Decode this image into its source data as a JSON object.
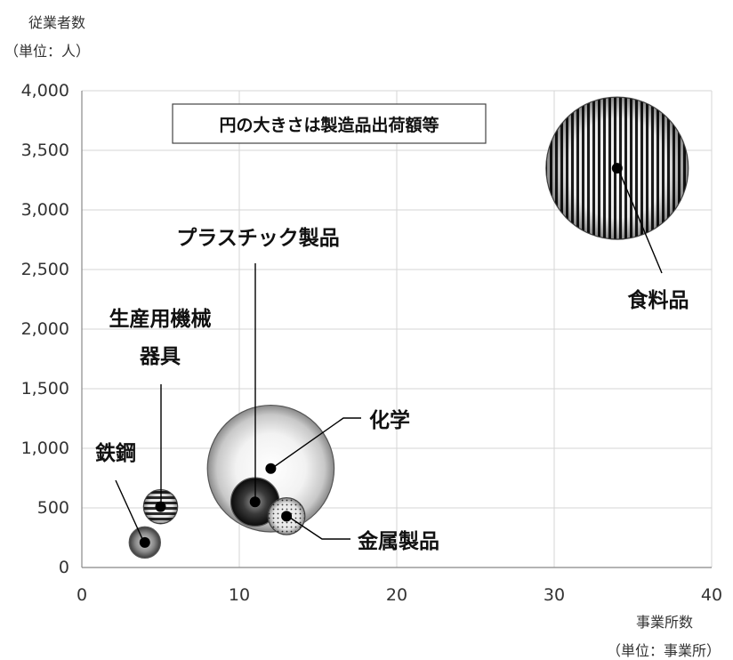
{
  "chart_data": {
    "type": "bubble",
    "ylabel_line1": "従業者数",
    "ylabel_line2": "（単位：人）",
    "xlabel_line1": "事業所数",
    "xlabel_line2": "（単位：事業所）",
    "legend_note": "円の大きさは製造品出荷額等",
    "xlim": [
      0,
      40
    ],
    "ylim": [
      0,
      4000
    ],
    "x_ticks": [
      0,
      10,
      20,
      30,
      40
    ],
    "x_tick_labels": [
      "0",
      "10",
      "20",
      "30",
      "40"
    ],
    "y_ticks": [
      0,
      500,
      1000,
      1500,
      2000,
      2500,
      3000,
      3500,
      4000
    ],
    "y_tick_labels": [
      "0",
      "500",
      "1,000",
      "1,500",
      "2,000",
      "2,500",
      "3,000",
      "3,500",
      "4,000"
    ],
    "grid": true,
    "points": [
      {
        "name": "食料品",
        "label_lines": [
          "食料品"
        ],
        "x": 34,
        "y": 3350,
        "size_rel": 1.0,
        "pattern": "vertical-stripes"
      },
      {
        "name": "化学",
        "label_lines": [
          "化学"
        ],
        "x": 12,
        "y": 830,
        "size_rel": 0.89,
        "pattern": "light-radial"
      },
      {
        "name": "プラスチック製品",
        "label_lines": [
          "プラスチック製品"
        ],
        "x": 11,
        "y": 550,
        "size_rel": 0.34,
        "pattern": "dark-radial"
      },
      {
        "name": "金属製品",
        "label_lines": [
          "金属製品"
        ],
        "x": 13,
        "y": 430,
        "size_rel": 0.26,
        "pattern": "dots"
      },
      {
        "name": "生産用機械器具",
        "label_lines": [
          "生産用機械",
          "器具"
        ],
        "x": 5,
        "y": 510,
        "size_rel": 0.24,
        "pattern": "horizontal-stripes"
      },
      {
        "name": "鉄鋼",
        "label_lines": [
          "鉄鋼"
        ],
        "x": 4,
        "y": 210,
        "size_rel": 0.22,
        "pattern": "medium-radial"
      }
    ]
  }
}
